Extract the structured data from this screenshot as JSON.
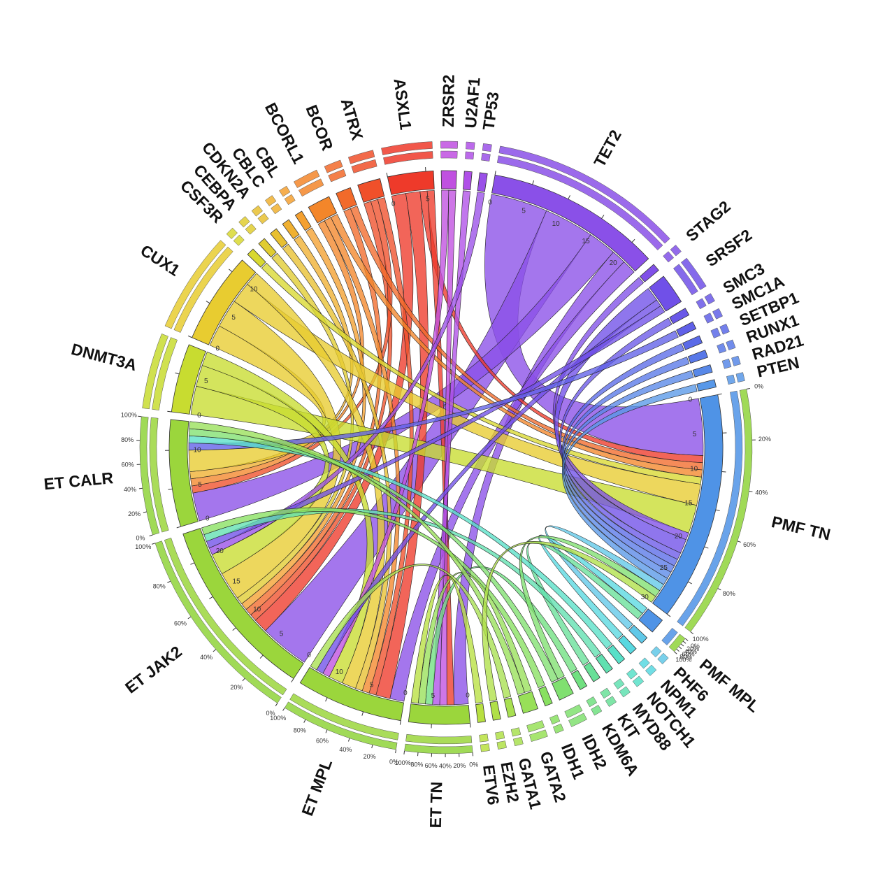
{
  "chart_data": {
    "type": "chord",
    "segments": [
      {
        "name": "ZRSR2",
        "size": 2,
        "color": "#c050e0"
      },
      {
        "name": "U2AF1",
        "size": 1,
        "color": "#b050e8"
      },
      {
        "name": "TP53",
        "size": 1,
        "color": "#9a50e8"
      },
      {
        "name": "TET2",
        "size": 23,
        "color": "#8a50e8",
        "ticks": [
          0,
          5,
          10,
          15,
          20
        ]
      },
      {
        "name": "STAG2",
        "size": 1,
        "color": "#8050e8"
      },
      {
        "name": "SRSF2",
        "size": 4,
        "color": "#7050e8"
      },
      {
        "name": "SMC3",
        "size": 1,
        "color": "#6a58e8"
      },
      {
        "name": "SMC1A",
        "size": 1,
        "color": "#6060e8"
      },
      {
        "name": "SETBP1",
        "size": 1,
        "color": "#5a6ae8"
      },
      {
        "name": "RUNX1",
        "size": 1,
        "color": "#5878e8"
      },
      {
        "name": "RAD21",
        "size": 1,
        "color": "#5888e8"
      },
      {
        "name": "PTEN",
        "size": 1,
        "color": "#5898e8"
      },
      {
        "name": "PMF TN",
        "size": 30,
        "color": "#4f93e6",
        "ticks": [
          0,
          5,
          10,
          15,
          20,
          25,
          30
        ],
        "pct": true
      },
      {
        "name": "PMF MPL",
        "size": 2,
        "color": "#4f93e6",
        "pct": true
      },
      {
        "name": "PHF6",
        "size": 1,
        "color": "#60c8e8"
      },
      {
        "name": "NPM1",
        "size": 1,
        "color": "#58d8e0"
      },
      {
        "name": "NOTCH1",
        "size": 1,
        "color": "#58e0c8"
      },
      {
        "name": "MYD88",
        "size": 1,
        "color": "#60e0b0"
      },
      {
        "name": "KIT",
        "size": 1,
        "color": "#68e098"
      },
      {
        "name": "KDM6A",
        "size": 1,
        "color": "#70e080"
      },
      {
        "name": "IDH2",
        "size": 2,
        "color": "#80e070"
      },
      {
        "name": "IDH1",
        "size": 1,
        "color": "#88e060"
      },
      {
        "name": "GATA2",
        "size": 2,
        "color": "#98e058"
      },
      {
        "name": "GATA1",
        "size": 1,
        "color": "#a8e050"
      },
      {
        "name": "EZH2",
        "size": 1,
        "color": "#b0e048"
      },
      {
        "name": "ETV6",
        "size": 1,
        "color": "#b8e040"
      },
      {
        "name": "ET TN",
        "size": 8,
        "color": "#9bd63c",
        "ticks": [
          0,
          5
        ],
        "pct": true
      },
      {
        "name": "ET MPL",
        "size": 14,
        "color": "#9bd63c",
        "ticks": [
          0,
          5,
          10
        ],
        "pct": true
      },
      {
        "name": "ET JAK2",
        "size": 24,
        "color": "#9bd63c",
        "ticks": [
          0,
          5,
          10,
          15,
          20
        ],
        "pct": true
      },
      {
        "name": "ET CALR",
        "size": 14,
        "color": "#9bd63c",
        "ticks": [
          0,
          5,
          10
        ],
        "pct": true
      },
      {
        "name": "DNMT3A",
        "size": 9,
        "color": "#c8dc30",
        "ticks": [
          0,
          5
        ]
      },
      {
        "name": "CUX1",
        "size": 12,
        "color": "#e8cc30",
        "ticks": [
          0,
          5,
          10
        ]
      },
      {
        "name": "CSF3R",
        "size": 1,
        "color": "#d8d830"
      },
      {
        "name": "CEBPA",
        "size": 1,
        "color": "#e0cc30"
      },
      {
        "name": "CDKN2A",
        "size": 1,
        "color": "#e8c030"
      },
      {
        "name": "CBLC",
        "size": 1,
        "color": "#f0b030"
      },
      {
        "name": "CBL",
        "size": 1,
        "color": "#f4a030"
      },
      {
        "name": "BCORL1",
        "size": 3,
        "color": "#f3862a"
      },
      {
        "name": "BCOR",
        "size": 2,
        "color": "#f26a2a"
      },
      {
        "name": "ATRX",
        "size": 3,
        "color": "#f0502a"
      },
      {
        "name": "ASXL1",
        "size": 6,
        "color": "#ee3a2a",
        "ticks": [
          0,
          5
        ]
      }
    ],
    "links": [
      {
        "source": "TET2",
        "target": "PMF TN",
        "value": 8
      },
      {
        "source": "TET2",
        "target": "ET JAK2",
        "value": 7
      },
      {
        "source": "TET2",
        "target": "ET CALR",
        "value": 4
      },
      {
        "source": "TET2",
        "target": "ET TN",
        "value": 2
      },
      {
        "source": "TET2",
        "target": "ET MPL",
        "value": 2
      },
      {
        "source": "ASXL1",
        "target": "ET JAK2",
        "value": 2
      },
      {
        "source": "ASXL1",
        "target": "ET MPL",
        "value": 2
      },
      {
        "source": "ASXL1",
        "target": "PMF TN",
        "value": 1
      },
      {
        "source": "ASXL1",
        "target": "ET TN",
        "value": 1
      },
      {
        "source": "ATRX",
        "target": "ET JAK2",
        "value": 1
      },
      {
        "source": "ATRX",
        "target": "ET CALR",
        "value": 1
      },
      {
        "source": "ATRX",
        "target": "ET MPL",
        "value": 1
      },
      {
        "source": "BCOR",
        "target": "ET JAK2",
        "value": 1
      },
      {
        "source": "BCOR",
        "target": "PMF TN",
        "value": 1
      },
      {
        "source": "BCORL1",
        "target": "ET CALR",
        "value": 1
      },
      {
        "source": "BCORL1",
        "target": "ET MPL",
        "value": 1
      },
      {
        "source": "BCORL1",
        "target": "PMF TN",
        "value": 1
      },
      {
        "source": "CBL",
        "target": "ET JAK2",
        "value": 1
      },
      {
        "source": "CBLC",
        "target": "ET CALR",
        "value": 1
      },
      {
        "source": "CDKN2A",
        "target": "ET MPL",
        "value": 1
      },
      {
        "source": "CEBPA",
        "target": "ET JAK2",
        "value": 1
      },
      {
        "source": "CSF3R",
        "target": "PMF TN",
        "value": 1
      },
      {
        "source": "CUX1",
        "target": "ET CALR",
        "value": 3
      },
      {
        "source": "CUX1",
        "target": "ET JAK2",
        "value": 4
      },
      {
        "source": "CUX1",
        "target": "PMF TN",
        "value": 3
      },
      {
        "source": "CUX1",
        "target": "ET MPL",
        "value": 2
      },
      {
        "source": "DNMT3A",
        "target": "PMF TN",
        "value": 4
      },
      {
        "source": "DNMT3A",
        "target": "ET JAK2",
        "value": 3
      },
      {
        "source": "DNMT3A",
        "target": "ET MPL",
        "value": 2
      },
      {
        "source": "ZRSR2",
        "target": "ET MPL",
        "value": 1
      },
      {
        "source": "ZRSR2",
        "target": "ET TN",
        "value": 1
      },
      {
        "source": "U2AF1",
        "target": "ET TN",
        "value": 1
      },
      {
        "source": "TP53",
        "target": "ET JAK2",
        "value": 1
      },
      {
        "source": "STAG2",
        "target": "PMF TN",
        "value": 1
      },
      {
        "source": "SRSF2",
        "target": "PMF TN",
        "value": 2
      },
      {
        "source": "SRSF2",
        "target": "ET MPL",
        "value": 1
      },
      {
        "source": "SRSF2",
        "target": "ET JAK2",
        "value": 1
      },
      {
        "source": "SMC3",
        "target": "PMF TN",
        "value": 1
      },
      {
        "source": "SMC1A",
        "target": "ET CALR",
        "value": 1
      },
      {
        "source": "SETBP1",
        "target": "PMF TN",
        "value": 1
      },
      {
        "source": "RUNX1",
        "target": "PMF TN",
        "value": 1
      },
      {
        "source": "RAD21",
        "target": "PMF TN",
        "value": 1
      },
      {
        "source": "PTEN",
        "target": "PMF TN",
        "value": 1
      },
      {
        "source": "PHF6",
        "target": "PMF TN",
        "value": 1
      },
      {
        "source": "NPM1",
        "target": "PMF MPL",
        "value": 1
      },
      {
        "source": "KIT",
        "target": "PMF MPL",
        "value": 1
      },
      {
        "source": "NOTCH1",
        "target": "ET CALR",
        "value": 1
      },
      {
        "source": "MYD88",
        "target": "ET JAK2",
        "value": 1
      },
      {
        "source": "KDM6A",
        "target": "ET TN",
        "value": 1
      },
      {
        "source": "IDH2",
        "target": "PMF TN",
        "value": 1
      },
      {
        "source": "IDH2",
        "target": "ET CALR",
        "value": 1
      },
      {
        "source": "IDH1",
        "target": "ET JAK2",
        "value": 1
      },
      {
        "source": "GATA2",
        "target": "ET TN",
        "value": 1
      },
      {
        "source": "GATA2",
        "target": "ET CALR",
        "value": 1
      },
      {
        "source": "GATA1",
        "target": "ET MPL",
        "value": 1
      },
      {
        "source": "EZH2",
        "target": "PMF TN",
        "value": 1
      },
      {
        "source": "ETV6",
        "target": "ET TN",
        "value": 1
      }
    ],
    "pct_ticks": [
      {
        "value": 0,
        "label": "0%"
      },
      {
        "value": 20,
        "label": "20%"
      },
      {
        "value": 40,
        "label": "40%"
      },
      {
        "value": 60,
        "label": "60%"
      },
      {
        "value": 80,
        "label": "80%"
      },
      {
        "value": 100,
        "label": "100%"
      }
    ]
  }
}
